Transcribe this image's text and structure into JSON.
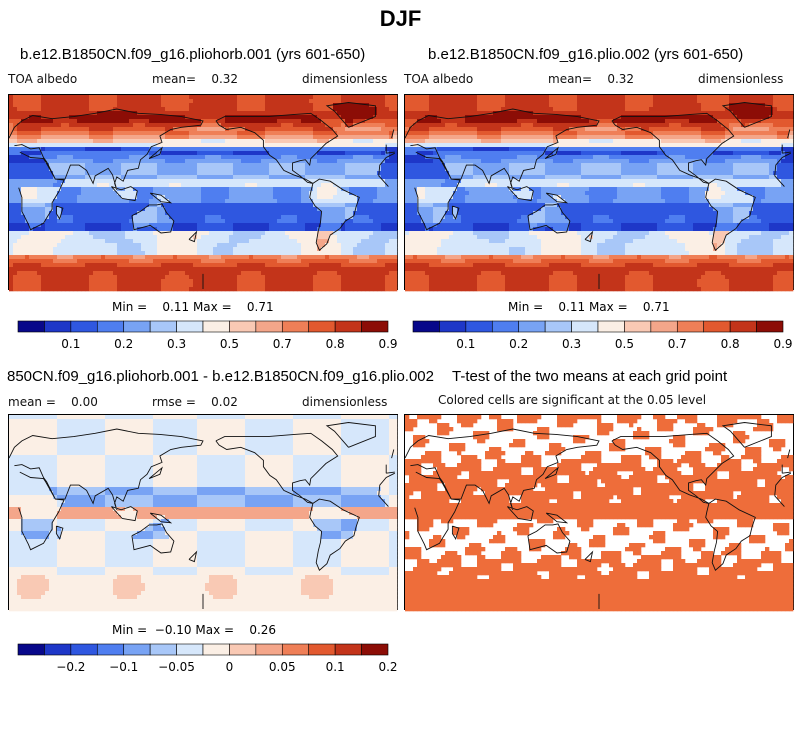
{
  "figure": {
    "title": "DJF"
  },
  "colors": {
    "land_outline": "#111111",
    "scale_abs": [
      "#08088a",
      "#1e37c8",
      "#2f57e0",
      "#4f7ef0",
      "#78a3f4",
      "#a8c7f8",
      "#d6e7fb",
      "#fbefe5",
      "#f9c9b4",
      "#f4a68a",
      "#ef7f57",
      "#e2592f",
      "#c3341a",
      "#8c0d06"
    ],
    "scale_diff": [
      "#08088a",
      "#1e37c8",
      "#2f57e0",
      "#4f7ef0",
      "#78a3f4",
      "#a8c7f8",
      "#d6e7fb",
      "#fbefe5",
      "#f9c9b4",
      "#f4a68a",
      "#ef7f57",
      "#e2592f",
      "#c3341a",
      "#8c0d06"
    ],
    "significant": "#ee6d3a"
  },
  "panels": [
    {
      "title": "b.e12.B1850CN.f09_g16.pliohorb.001 (yrs 601-650)",
      "left": "TOA albedo",
      "center": "mean=    0.32",
      "right": "dimensionless",
      "minmax": "Min =    0.11 Max =    0.71",
      "ticks": [
        "0.1",
        "0.2",
        "0.3",
        "0.5",
        "0.7",
        "0.8",
        "0.9"
      ]
    },
    {
      "title": "b.e12.B1850CN.f09_g16.plio.002 (yrs 601-650)",
      "left": "TOA albedo",
      "center": "mean=    0.32",
      "right": "dimensionless",
      "minmax": "Min =    0.11 Max =    0.71",
      "ticks": [
        "0.1",
        "0.2",
        "0.3",
        "0.5",
        "0.7",
        "0.8",
        "0.9"
      ]
    },
    {
      "title": "850CN.f09_g16.pliohorb.001 - b.e12.B1850CN.f09_g16.plio.002",
      "left": "mean =    0.00",
      "center": "rmse =    0.02",
      "right": "dimensionless",
      "minmax": "Min =  −0.10 Max =    0.26",
      "ticks": [
        "−0.2",
        "−0.1",
        "−0.05",
        "0",
        "0.05",
        "0.1",
        "0.2"
      ]
    },
    {
      "title": "T-test of the two means at each grid point",
      "subtitle": "Colored cells are significant at the 0.05 level"
    }
  ],
  "chart_data": [
    {
      "type": "heatmap",
      "title": "b.e12.B1850CN.f09_g16.pliohorb.001 (yrs 601-650)",
      "variable": "TOA albedo",
      "units": "dimensionless",
      "mean": 0.32,
      "min": 0.11,
      "max": 0.71,
      "colorbar_ticks": [
        0.1,
        0.2,
        0.3,
        0.5,
        0.7,
        0.8,
        0.9
      ]
    },
    {
      "type": "heatmap",
      "title": "b.e12.B1850CN.f09_g16.plio.002 (yrs 601-650)",
      "variable": "TOA albedo",
      "units": "dimensionless",
      "mean": 0.32,
      "min": 0.11,
      "max": 0.71,
      "colorbar_ticks": [
        0.1,
        0.2,
        0.3,
        0.5,
        0.7,
        0.8,
        0.9
      ]
    },
    {
      "type": "heatmap",
      "title": "850CN.f09_g16.pliohorb.001 - b.e12.B1850CN.f09_g16.plio.002",
      "units": "dimensionless",
      "mean": 0.0,
      "rmse": 0.02,
      "min": -0.1,
      "max": 0.26,
      "colorbar_ticks": [
        -0.2,
        -0.1,
        -0.05,
        0,
        0.05,
        0.1,
        0.2
      ]
    },
    {
      "type": "heatmap",
      "title": "T-test of the two means at each grid point",
      "subtitle": "Colored cells are significant at the 0.05 level",
      "significance_level": 0.05
    }
  ]
}
